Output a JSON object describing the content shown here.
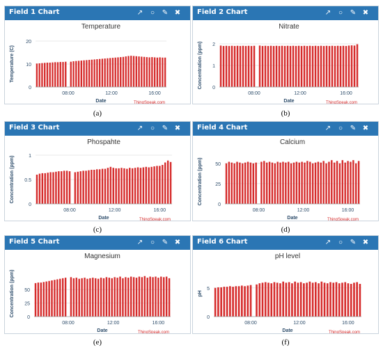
{
  "panels": [
    {
      "header_title": "Field 1 Chart",
      "caption": "(a)"
    },
    {
      "header_title": "Field 2 Chart",
      "caption": "(b)"
    },
    {
      "header_title": "Field 3 Chart",
      "caption": "(c)"
    },
    {
      "header_title": "Field 4 Chart",
      "caption": "(d)"
    },
    {
      "header_title": "Field 5 Chart",
      "caption": "(e)"
    },
    {
      "header_title": "Field 6 Chart",
      "caption": "(f)"
    }
  ],
  "header_icons": [
    "external-link-icon",
    "comment-icon",
    "pencil-icon",
    "close-icon"
  ],
  "colors": {
    "header": "#2b76b4",
    "bar": "#d62c2c",
    "credit": "#d62c2c",
    "axis_text": "#2e4d6b"
  },
  "chart_data": [
    {
      "type": "bar",
      "title": "Temperature",
      "xlabel": "Date",
      "ylabel": "Temperature (C)",
      "credit": "ThingSpeak.com",
      "ylim": [
        0,
        20
      ],
      "yticks": [
        "0",
        "10",
        "20"
      ],
      "xticks": [
        "08:00",
        "12:00",
        "16:00"
      ],
      "values": [
        10.2,
        10.3,
        10.4,
        10.5,
        10.6,
        10.6,
        10.7,
        10.8,
        10.8,
        10.9,
        10.9,
        11.0,
        0,
        11.0,
        11.2,
        11.3,
        11.4,
        11.5,
        11.6,
        11.7,
        11.8,
        11.9,
        12.0,
        12.1,
        12.2,
        12.3,
        12.4,
        12.5,
        12.6,
        12.7,
        12.8,
        12.9,
        13.0,
        13.1,
        13.3,
        13.5,
        13.6,
        13.5,
        13.4,
        13.3,
        13.2,
        13.1,
        13.0,
        12.9,
        13.0,
        12.9,
        12.8,
        12.9,
        12.8,
        12.8
      ]
    },
    {
      "type": "bar",
      "title": "Nitrate",
      "xlabel": "Date",
      "ylabel": "Concentration (ppm)",
      "credit": "ThingSpeak.com",
      "ylim": [
        0,
        2
      ],
      "yticks": [
        "0",
        "1",
        "2"
      ],
      "xticks": [
        "08:00",
        "12:00",
        "16:00"
      ],
      "values": [
        1.92,
        1.9,
        1.91,
        1.9,
        1.91,
        1.9,
        1.91,
        1.9,
        1.91,
        1.9,
        1.91,
        1.9,
        1.91,
        0,
        1.92,
        1.9,
        1.91,
        1.9,
        1.91,
        1.9,
        1.91,
        1.9,
        1.91,
        1.9,
        1.91,
        1.9,
        1.91,
        1.9,
        1.91,
        1.9,
        1.91,
        1.9,
        1.91,
        1.9,
        1.91,
        1.9,
        1.91,
        1.9,
        1.91,
        1.9,
        1.91,
        1.9,
        1.91,
        1.9,
        1.91,
        1.9,
        1.92,
        1.93,
        1.92,
        1.98
      ]
    },
    {
      "type": "bar",
      "title": "Phospahte",
      "xlabel": "Date",
      "ylabel": "Concentration (ppm)",
      "credit": "ThingSpeak.com",
      "ylim": [
        0,
        1
      ],
      "yticks": [
        "0",
        "0.5",
        "1"
      ],
      "xticks": [
        "08:00",
        "12:00",
        "16:00"
      ],
      "values": [
        0.6,
        0.62,
        0.63,
        0.63,
        0.64,
        0.65,
        0.65,
        0.66,
        0.67,
        0.67,
        0.68,
        0.68,
        0.67,
        0,
        0.65,
        0.66,
        0.67,
        0.68,
        0.68,
        0.69,
        0.7,
        0.7,
        0.71,
        0.71,
        0.72,
        0.72,
        0.74,
        0.76,
        0.74,
        0.73,
        0.73,
        0.74,
        0.73,
        0.72,
        0.74,
        0.73,
        0.74,
        0.75,
        0.74,
        0.75,
        0.76,
        0.75,
        0.76,
        0.77,
        0.78,
        0.78,
        0.8,
        0.85,
        0.89,
        0.86
      ]
    },
    {
      "type": "bar",
      "title": "Calcium",
      "xlabel": "Date",
      "ylabel": "Concentration (ppm)",
      "credit": "ThingSpeak.com",
      "ylim": [
        0,
        55
      ],
      "yticks": [
        "0",
        "25",
        "50"
      ],
      "xticks": [
        "08:00",
        "12:00",
        "16:00"
      ],
      "values": [
        50,
        52,
        51,
        50,
        52,
        51,
        50,
        51,
        52,
        51,
        50,
        51,
        0,
        52,
        53,
        51,
        52,
        51,
        50,
        52,
        51,
        52,
        51,
        52,
        50,
        51,
        52,
        51,
        52,
        51,
        53,
        52,
        50,
        51,
        52,
        51,
        53,
        50,
        52,
        54,
        51,
        53,
        50,
        54,
        51,
        53,
        52,
        54,
        50,
        53
      ]
    },
    {
      "type": "bar",
      "title": "Magnesium",
      "xlabel": "Date",
      "ylabel": "Concentration (ppm)",
      "credit": "ThingSpeak.com",
      "ylim": [
        0,
        85
      ],
      "yticks": [
        "0",
        "25",
        "50"
      ],
      "xticks": [
        "08:00",
        "12:00",
        "16:00"
      ],
      "values": [
        62,
        63,
        63,
        64,
        65,
        66,
        67,
        68,
        69,
        70,
        71,
        72,
        0,
        73,
        71,
        72,
        70,
        71,
        72,
        70,
        71,
        72,
        71,
        70,
        72,
        71,
        73,
        72,
        71,
        73,
        72,
        74,
        71,
        73,
        72,
        74,
        73,
        72,
        74,
        73,
        75,
        72,
        74,
        73,
        74,
        72,
        74,
        73,
        74,
        71
      ]
    },
    {
      "type": "bar",
      "title": "pH level",
      "xlabel": "Date",
      "ylabel": "pH",
      "credit": "ThingSpeak.com",
      "ylim": [
        0,
        8
      ],
      "yticks": [
        "0",
        "5"
      ],
      "xticks": [
        "08:00",
        "12:00",
        "16:00"
      ],
      "values": [
        5.0,
        5.1,
        5.1,
        5.2,
        5.2,
        5.3,
        5.2,
        5.3,
        5.3,
        5.4,
        5.3,
        5.4,
        5.5,
        0,
        5.6,
        5.8,
        5.9,
        6.0,
        5.9,
        5.8,
        6.0,
        5.9,
        5.8,
        6.1,
        5.9,
        6.0,
        5.8,
        6.1,
        5.9,
        6.0,
        5.8,
        5.9,
        6.1,
        5.9,
        6.0,
        5.8,
        6.1,
        5.9,
        5.8,
        6.0,
        5.9,
        6.0,
        5.8,
        5.9,
        6.0,
        5.8,
        5.7,
        5.9,
        6.0,
        5.7
      ]
    }
  ]
}
